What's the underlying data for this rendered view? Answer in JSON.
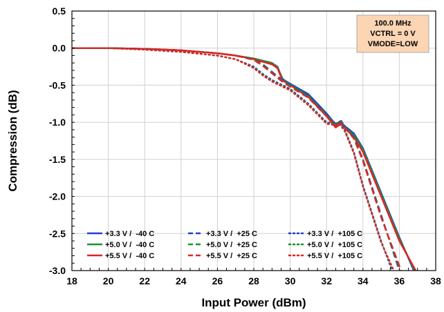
{
  "chart_data": {
    "type": "line",
    "title": "",
    "xlabel": "Input Power (dBm)",
    "ylabel": "Compression (dB)",
    "xlim": [
      18,
      38
    ],
    "ylim": [
      -3.0,
      0.5
    ],
    "x_ticks": [
      "18",
      "20",
      "22",
      "24",
      "26",
      "28",
      "30",
      "32",
      "34",
      "36",
      "38"
    ],
    "y_ticks": [
      "0.5",
      "0.0",
      "-0.5",
      "-1.0",
      "-1.5",
      "-2.0",
      "-2.5",
      "-3.0"
    ],
    "grid": true,
    "legend_position": "bottom-left",
    "annotation": [
      "100.0 MHz",
      "VCTRL = 0 V",
      "VMODE=LOW"
    ],
    "annotation_fill": "#fcd5b4",
    "series": [
      {
        "name": "+3.3 V /  -40 C",
        "color": "#1f3fd1",
        "style": "solid",
        "x": [
          18,
          20,
          22,
          24,
          26,
          27,
          28,
          29,
          29.3,
          29.5,
          29.6,
          29.8,
          30,
          31,
          32,
          32.5,
          32.8,
          33,
          33.5,
          34,
          35,
          36,
          36.8
        ],
        "y": [
          0,
          0,
          -0.01,
          -0.03,
          -0.07,
          -0.1,
          -0.14,
          -0.2,
          -0.25,
          -0.37,
          -0.42,
          -0.45,
          -0.48,
          -0.62,
          -0.88,
          -1.03,
          -1.0,
          -1.05,
          -1.15,
          -1.35,
          -1.95,
          -2.55,
          -3.0
        ]
      },
      {
        "name": "+5.0 V /  -40 C",
        "color": "#1e8f2e",
        "style": "solid",
        "x": [
          18,
          20,
          22,
          24,
          26,
          27,
          28,
          29,
          29.3,
          29.5,
          29.6,
          29.8,
          30,
          31,
          32,
          32.5,
          32.8,
          33,
          33.5,
          34,
          35,
          36,
          36.85
        ],
        "y": [
          0,
          0,
          -0.01,
          -0.03,
          -0.07,
          -0.1,
          -0.14,
          -0.2,
          -0.26,
          -0.38,
          -0.43,
          -0.46,
          -0.49,
          -0.64,
          -0.9,
          -1.05,
          -1.02,
          -1.07,
          -1.17,
          -1.37,
          -1.97,
          -2.57,
          -3.0
        ]
      },
      {
        "name": "+5.5 V /  -40 C",
        "color": "#e02424",
        "style": "solid",
        "x": [
          18,
          20,
          22,
          24,
          26,
          27,
          28,
          29,
          29.3,
          29.5,
          29.6,
          29.8,
          30,
          31,
          32,
          32.5,
          32.8,
          33,
          33.5,
          34,
          35,
          36,
          36.9
        ],
        "y": [
          0,
          0,
          -0.01,
          -0.03,
          -0.07,
          -0.1,
          -0.15,
          -0.22,
          -0.27,
          -0.39,
          -0.44,
          -0.47,
          -0.5,
          -0.66,
          -0.92,
          -1.07,
          -1.02,
          -1.08,
          -1.2,
          -1.4,
          -2.0,
          -2.6,
          -3.0
        ]
      },
      {
        "name": "+3.3 V /  +25 C",
        "color": "#1f3fd1",
        "style": "dashed",
        "x": [
          18,
          20,
          22,
          24,
          26,
          27,
          28,
          28.5,
          29,
          29.5,
          30,
          31,
          32,
          32.5,
          32.8,
          33,
          33.5,
          34,
          35,
          36
        ],
        "y": [
          0,
          0,
          -0.01,
          -0.03,
          -0.07,
          -0.1,
          -0.15,
          -0.22,
          -0.32,
          -0.42,
          -0.5,
          -0.65,
          -0.9,
          -1.02,
          -0.98,
          -1.05,
          -1.2,
          -1.5,
          -2.25,
          -3.0
        ]
      },
      {
        "name": "+5.0 V /  +25 C",
        "color": "#1e8f2e",
        "style": "dashed",
        "x": [
          18,
          20,
          22,
          24,
          26,
          27,
          28,
          28.5,
          29,
          29.5,
          30,
          31,
          32,
          32.5,
          32.8,
          33,
          33.5,
          34,
          35,
          36.05
        ],
        "y": [
          0,
          0,
          -0.01,
          -0.03,
          -0.07,
          -0.1,
          -0.15,
          -0.23,
          -0.33,
          -0.43,
          -0.51,
          -0.66,
          -0.91,
          -1.03,
          -0.99,
          -1.06,
          -1.21,
          -1.51,
          -2.27,
          -3.0
        ]
      },
      {
        "name": "+5.5 V /  +25 C",
        "color": "#e02424",
        "style": "dashed",
        "x": [
          18,
          20,
          22,
          24,
          26,
          27,
          28,
          28.5,
          29,
          29.5,
          30,
          31,
          32,
          32.5,
          32.8,
          33,
          33.5,
          34,
          35,
          36.1
        ],
        "y": [
          0,
          0,
          -0.01,
          -0.03,
          -0.07,
          -0.1,
          -0.16,
          -0.24,
          -0.34,
          -0.44,
          -0.52,
          -0.67,
          -0.92,
          -1.04,
          -1.0,
          -1.07,
          -1.22,
          -1.52,
          -2.28,
          -3.0
        ]
      },
      {
        "name": "+3.3 V /  +105 C",
        "color": "#1f3fd1",
        "style": "dotted",
        "x": [
          18,
          20,
          22,
          24,
          26,
          27,
          28,
          28.5,
          29,
          30,
          31,
          32,
          32.5,
          32.7,
          33,
          33.5,
          34,
          35,
          35.6
        ],
        "y": [
          0,
          0,
          -0.02,
          -0.05,
          -0.1,
          -0.15,
          -0.25,
          -0.35,
          -0.43,
          -0.55,
          -0.75,
          -1.0,
          -1.02,
          -1.0,
          -1.1,
          -1.4,
          -1.85,
          -2.6,
          -3.0
        ]
      },
      {
        "name": "+5.0 V /  +105 C",
        "color": "#1e8f2e",
        "style": "dotted",
        "x": [
          18,
          20,
          22,
          24,
          26,
          27,
          28,
          28.5,
          29,
          30,
          31,
          32,
          32.5,
          32.7,
          33,
          33.5,
          34,
          35,
          35.65
        ],
        "y": [
          0,
          0,
          -0.02,
          -0.05,
          -0.1,
          -0.15,
          -0.26,
          -0.36,
          -0.44,
          -0.56,
          -0.76,
          -1.01,
          -1.03,
          -1.01,
          -1.11,
          -1.41,
          -1.86,
          -2.61,
          -3.0
        ]
      },
      {
        "name": "+5.5 V /  +105 C",
        "color": "#e02424",
        "style": "dotted",
        "x": [
          18,
          20,
          22,
          24,
          26,
          27,
          28,
          28.5,
          29,
          30,
          31,
          32,
          32.5,
          32.7,
          33,
          33.5,
          34,
          35,
          35.7
        ],
        "y": [
          0,
          0,
          -0.02,
          -0.05,
          -0.1,
          -0.15,
          -0.27,
          -0.37,
          -0.45,
          -0.57,
          -0.77,
          -1.02,
          -1.04,
          -1.02,
          -1.12,
          -1.42,
          -1.87,
          -2.62,
          -3.0
        ]
      }
    ]
  }
}
